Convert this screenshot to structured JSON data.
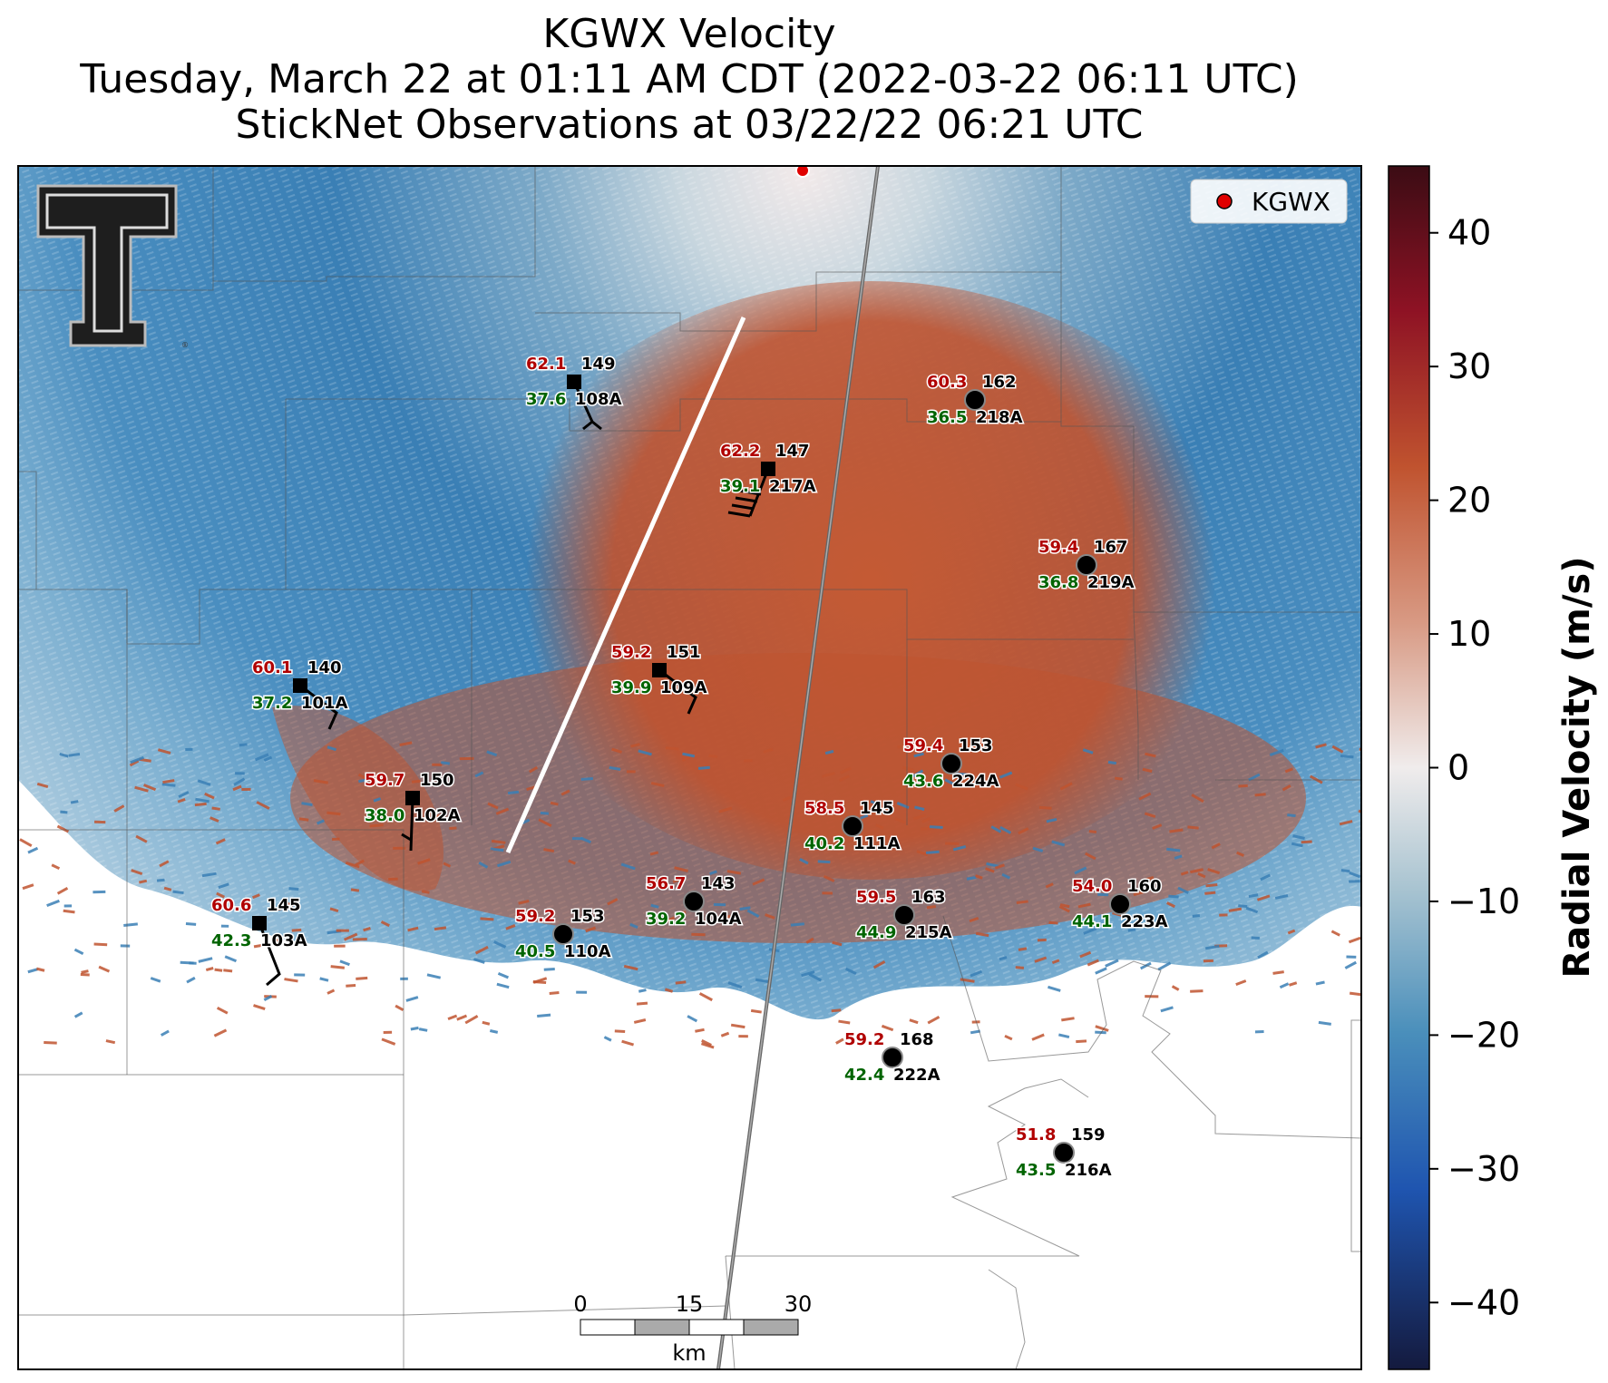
{
  "title": {
    "line1": "KGWX Velocity",
    "line2": "Tuesday, March 22 at 01:11 AM CDT (2022-03-22 06:11 UTC)",
    "line3": "StickNet Observations at 03/22/22 06:21 UTC"
  },
  "legend": {
    "label": "KGWX",
    "marker_color": "#e00000"
  },
  "colorbar": {
    "label": "Radial Velocity (m/s)",
    "min": -45,
    "max": 45,
    "ticks": [
      40,
      30,
      20,
      10,
      0,
      -10,
      -20,
      -30,
      -40
    ],
    "tick_labels": [
      "40",
      "30",
      "20",
      "10",
      "0",
      "−10",
      "−20",
      "−30",
      "−40"
    ]
  },
  "scalebar": {
    "ticks": [
      "0",
      "15",
      "30"
    ],
    "unit": "km"
  },
  "colors": {
    "inbound": "#3a7fb5",
    "outbound": "#c0532f",
    "temp_label": "#b00000",
    "dewpoint_label": "#006400"
  },
  "stations": [
    {
      "id": "108A",
      "temp": "62.1",
      "dew": "37.6",
      "pressure": "149",
      "marker": "square"
    },
    {
      "id": "217A",
      "temp": "62.2",
      "dew": "39.1",
      "pressure": "147",
      "marker": "square"
    },
    {
      "id": "218A",
      "temp": "60.3",
      "dew": "36.5",
      "pressure": "162",
      "marker": "circle"
    },
    {
      "id": "219A",
      "temp": "59.4",
      "dew": "36.8",
      "pressure": "167",
      "marker": "circle"
    },
    {
      "id": "101A",
      "temp": "60.1",
      "dew": "37.2",
      "pressure": "140",
      "marker": "square"
    },
    {
      "id": "109A",
      "temp": "59.2",
      "dew": "39.9",
      "pressure": "151",
      "marker": "square"
    },
    {
      "id": "224A",
      "temp": "59.4",
      "dew": "43.6",
      "pressure": "153",
      "marker": "circle"
    },
    {
      "id": "102A",
      "temp": "59.7",
      "dew": "38.0",
      "pressure": "150",
      "marker": "square"
    },
    {
      "id": "111A",
      "temp": "58.5",
      "dew": "40.2",
      "pressure": "145",
      "marker": "circle"
    },
    {
      "id": "104A",
      "temp": "56.7",
      "dew": "39.2",
      "pressure": "143",
      "marker": "circle"
    },
    {
      "id": "215A",
      "temp": "59.5",
      "dew": "44.9",
      "pressure": "163",
      "marker": "circle"
    },
    {
      "id": "223A",
      "temp": "54.0",
      "dew": "44.1",
      "pressure": "160",
      "marker": "circle"
    },
    {
      "id": "103A",
      "temp": "60.6",
      "dew": "42.3",
      "pressure": "145",
      "marker": "square"
    },
    {
      "id": "110A",
      "temp": "59.2",
      "dew": "40.5",
      "pressure": "153",
      "marker": "circle"
    },
    {
      "id": "222A",
      "temp": "59.2",
      "dew": "42.4",
      "pressure": "168",
      "marker": "circle"
    },
    {
      "id": "216A",
      "temp": "51.8",
      "dew": "43.5",
      "pressure": "159",
      "marker": "circle"
    }
  ]
}
